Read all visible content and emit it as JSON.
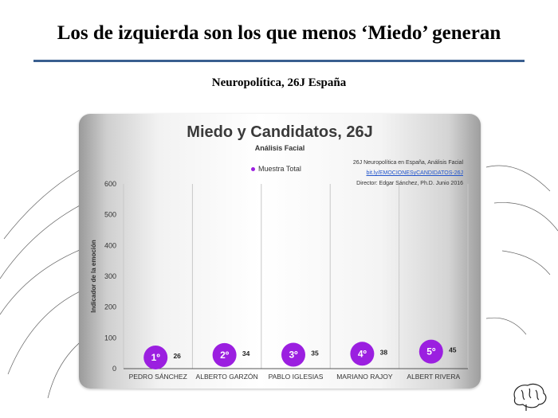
{
  "slide": {
    "title": "Los de izquierda son los que menos ‘Miedo’ generan",
    "subtitle": "Neuropolítica, 26J España"
  },
  "credits": {
    "line1": "26J Neuropolítica en España, Análisis Facial",
    "link": "bit.ly/EMOCIONESyCANDIDATOS-26J",
    "line3": "Director: Edgar Sánchez, Ph.D.   Junio 2016"
  },
  "colors": {
    "marker": "#9b1fe0",
    "rule": "#3a5f8f"
  },
  "chart_data": {
    "type": "scatter",
    "title": "Miedo y Candidatos, 26J",
    "subtitle": "Análisis Facial",
    "ylabel": "Indicador de la emoción",
    "xlabel": "",
    "ylim": [
      0,
      600
    ],
    "yticks": [
      "0",
      "100",
      "200",
      "300",
      "400",
      "500",
      "600"
    ],
    "grid": "vertical",
    "legend_position": "top-center",
    "categories": [
      "PEDRO SÁNCHEZ",
      "ALBERTO GARZÓN",
      "PABLO IGLESIAS",
      "MARIANO RAJOY",
      "ALBERT RIVERA"
    ],
    "series": [
      {
        "name": "Muestra Total",
        "values": [
          26,
          34,
          35,
          38,
          45
        ],
        "value_labels": [
          "26",
          "34",
          "35",
          "38",
          "45"
        ],
        "rank_labels": [
          "1º",
          "2º",
          "3º",
          "4º",
          "5º"
        ]
      }
    ]
  }
}
